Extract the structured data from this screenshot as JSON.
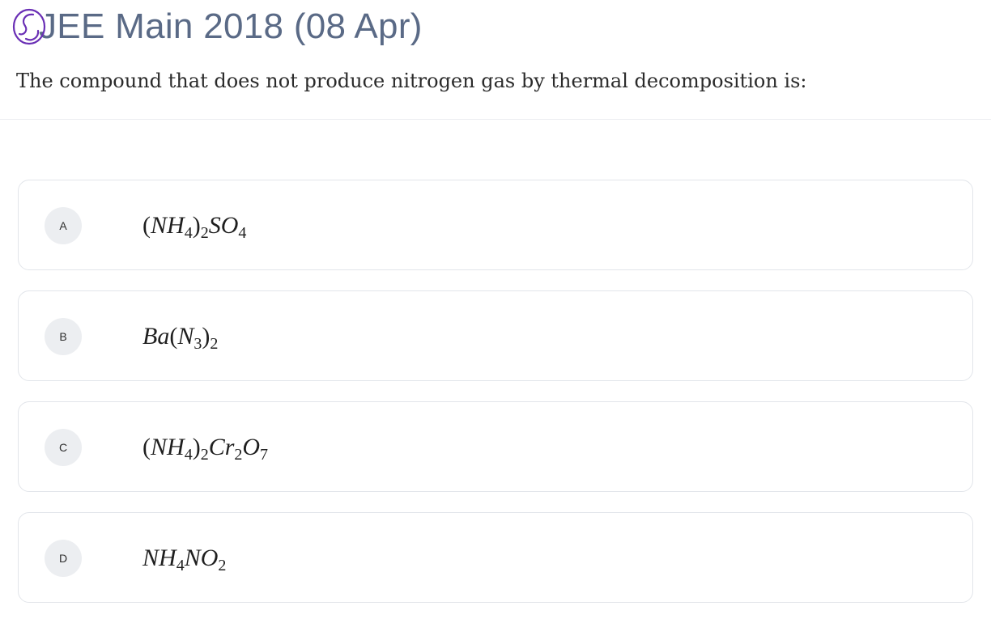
{
  "header": {
    "title": "JEE Main 2018 (08 Apr)",
    "logo_icon": "swirl-logo-icon",
    "accent_color": "#6a2fb5",
    "title_color": "#5a6a86"
  },
  "question": {
    "text": "The compound that does not produce nitrogen gas by thermal decomposition is:"
  },
  "options": [
    {
      "letter": "A",
      "formula_text": "(NH4)2SO4",
      "parts": [
        {
          "t": "(",
          "k": "par"
        },
        {
          "t": "NH",
          "k": "i"
        },
        {
          "t": "4",
          "k": "sub"
        },
        {
          "t": ")",
          "k": "par"
        },
        {
          "t": "2",
          "k": "sub"
        },
        {
          "t": "SO",
          "k": "i"
        },
        {
          "t": "4",
          "k": "sub"
        }
      ]
    },
    {
      "letter": "B",
      "formula_text": "Ba(N3)2",
      "parts": [
        {
          "t": "Ba",
          "k": "i"
        },
        {
          "t": "(",
          "k": "par"
        },
        {
          "t": "N",
          "k": "i"
        },
        {
          "t": "3",
          "k": "sub"
        },
        {
          "t": ")",
          "k": "par"
        },
        {
          "t": "2",
          "k": "sub"
        }
      ]
    },
    {
      "letter": "C",
      "formula_text": "(NH4)2Cr2O7",
      "parts": [
        {
          "t": "(",
          "k": "par"
        },
        {
          "t": "NH",
          "k": "i"
        },
        {
          "t": "4",
          "k": "sub"
        },
        {
          "t": ")",
          "k": "par"
        },
        {
          "t": "2",
          "k": "sub"
        },
        {
          "t": "Cr",
          "k": "i"
        },
        {
          "t": "2",
          "k": "sub"
        },
        {
          "t": "O",
          "k": "i"
        },
        {
          "t": "7",
          "k": "sub"
        }
      ]
    },
    {
      "letter": "D",
      "formula_text": "NH4NO2",
      "parts": [
        {
          "t": "NH",
          "k": "i"
        },
        {
          "t": "4",
          "k": "sub"
        },
        {
          "t": "NO",
          "k": "i"
        },
        {
          "t": "2",
          "k": "sub"
        }
      ]
    }
  ]
}
